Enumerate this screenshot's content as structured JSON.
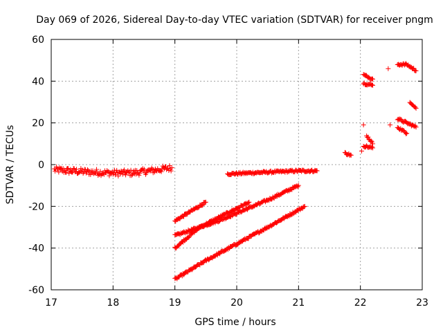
{
  "chart_data": {
    "type": "scatter",
    "title": "Day 069 of 2026, Sidereal Day-to-day VTEC variation (SDTVAR) for receiver pngm",
    "xlabel": "GPS time / hours",
    "ylabel": "SDTVAR / TECUs",
    "xlim": [
      17,
      23
    ],
    "ylim": [
      -60,
      60
    ],
    "xticks": [
      17,
      18,
      19,
      20,
      21,
      22,
      23
    ],
    "yticks": [
      -60,
      -40,
      -20,
      0,
      20,
      40,
      60
    ],
    "xtick_labels": [
      "17",
      "18",
      "19",
      "20",
      "21",
      "22",
      "23"
    ],
    "ytick_labels": [
      "-60",
      "-40",
      "-20",
      "0",
      "20",
      "40",
      "60"
    ],
    "grid": true,
    "marker": "+",
    "color": "#ff0000",
    "series": [
      {
        "name": "arc-1",
        "segments": [
          {
            "x": [
              17.05,
              17.3,
              17.6,
              18.0,
              18.3,
              18.6,
              18.95
            ],
            "y": [
              -2.5,
              -3.0,
              -3.5,
              -4.0,
              -4.0,
              -3.0,
              -1.5
            ],
            "spread": 3.0
          }
        ]
      },
      {
        "name": "arc-2",
        "segments": [
          {
            "x": [
              19.85,
              20.2,
              20.6,
              21.0,
              21.3
            ],
            "y": [
              -4.5,
              -4.0,
              -3.5,
              -3.0,
              -3.0
            ],
            "spread": 1.0
          }
        ]
      },
      {
        "name": "arc-3",
        "segments": [
          {
            "x": [
              19.0,
              19.5
            ],
            "y": [
              -27,
              -18
            ],
            "spread": 1.0
          }
        ]
      },
      {
        "name": "arc-4",
        "segments": [
          {
            "x": [
              19.0,
              19.7,
              20.1,
              20.5,
              21.0
            ],
            "y": [
              -34,
              -27,
              -22,
              -17,
              -10
            ],
            "spread": 1.0
          }
        ]
      },
      {
        "name": "arc-5",
        "segments": [
          {
            "x": [
              19.0,
              19.4,
              19.8,
              20.2
            ],
            "y": [
              -40,
              -30,
              -24,
              -18
            ],
            "spread": 1.0
          }
        ]
      },
      {
        "name": "arc-6",
        "segments": [
          {
            "x": [
              19.0,
              19.5,
              20.0,
              20.5,
              21.1
            ],
            "y": [
              -55,
              -46,
              -38,
              -30,
              -20
            ],
            "spread": 1.0
          }
        ]
      },
      {
        "name": "arc-7",
        "segments": [
          {
            "x": [
              21.75,
              21.85
            ],
            "y": [
              5.5,
              4.5
            ],
            "spread": 1.0
          }
        ]
      },
      {
        "name": "arc-8",
        "segments": [
          {
            "x": [
              22.05,
              22.2
            ],
            "y": [
              43,
              41
            ],
            "spread": 1.0
          },
          {
            "x": [
              22.05,
              22.2
            ],
            "y": [
              39,
              38
            ],
            "spread": 1.0
          },
          {
            "x": [
              22.1,
              22.2
            ],
            "y": [
              14,
              10
            ],
            "spread": 1.0
          },
          {
            "x": [
              22.05,
              22.2
            ],
            "y": [
              9,
              8
            ],
            "spread": 1.0
          },
          {
            "x": [
              22.02,
              22.05
            ],
            "y": [
              6.5,
              19
            ],
            "spread": 0.0
          }
        ]
      },
      {
        "name": "arc-9",
        "segments": [
          {
            "x": [
              22.45,
              22.48
            ],
            "y": [
              46,
              19
            ],
            "spread": 0.0
          },
          {
            "x": [
              22.6,
              22.75,
              22.9
            ],
            "y": [
              48,
              48,
              45
            ],
            "spread": 1.0
          },
          {
            "x": [
              22.6,
              22.75,
              22.9
            ],
            "y": [
              22,
              20,
              18
            ],
            "spread": 1.0
          },
          {
            "x": [
              22.6,
              22.75
            ],
            "y": [
              18,
              15
            ],
            "spread": 1.0
          },
          {
            "x": [
              22.8,
              22.9
            ],
            "y": [
              30,
              27
            ],
            "spread": 0.5
          }
        ]
      }
    ]
  }
}
